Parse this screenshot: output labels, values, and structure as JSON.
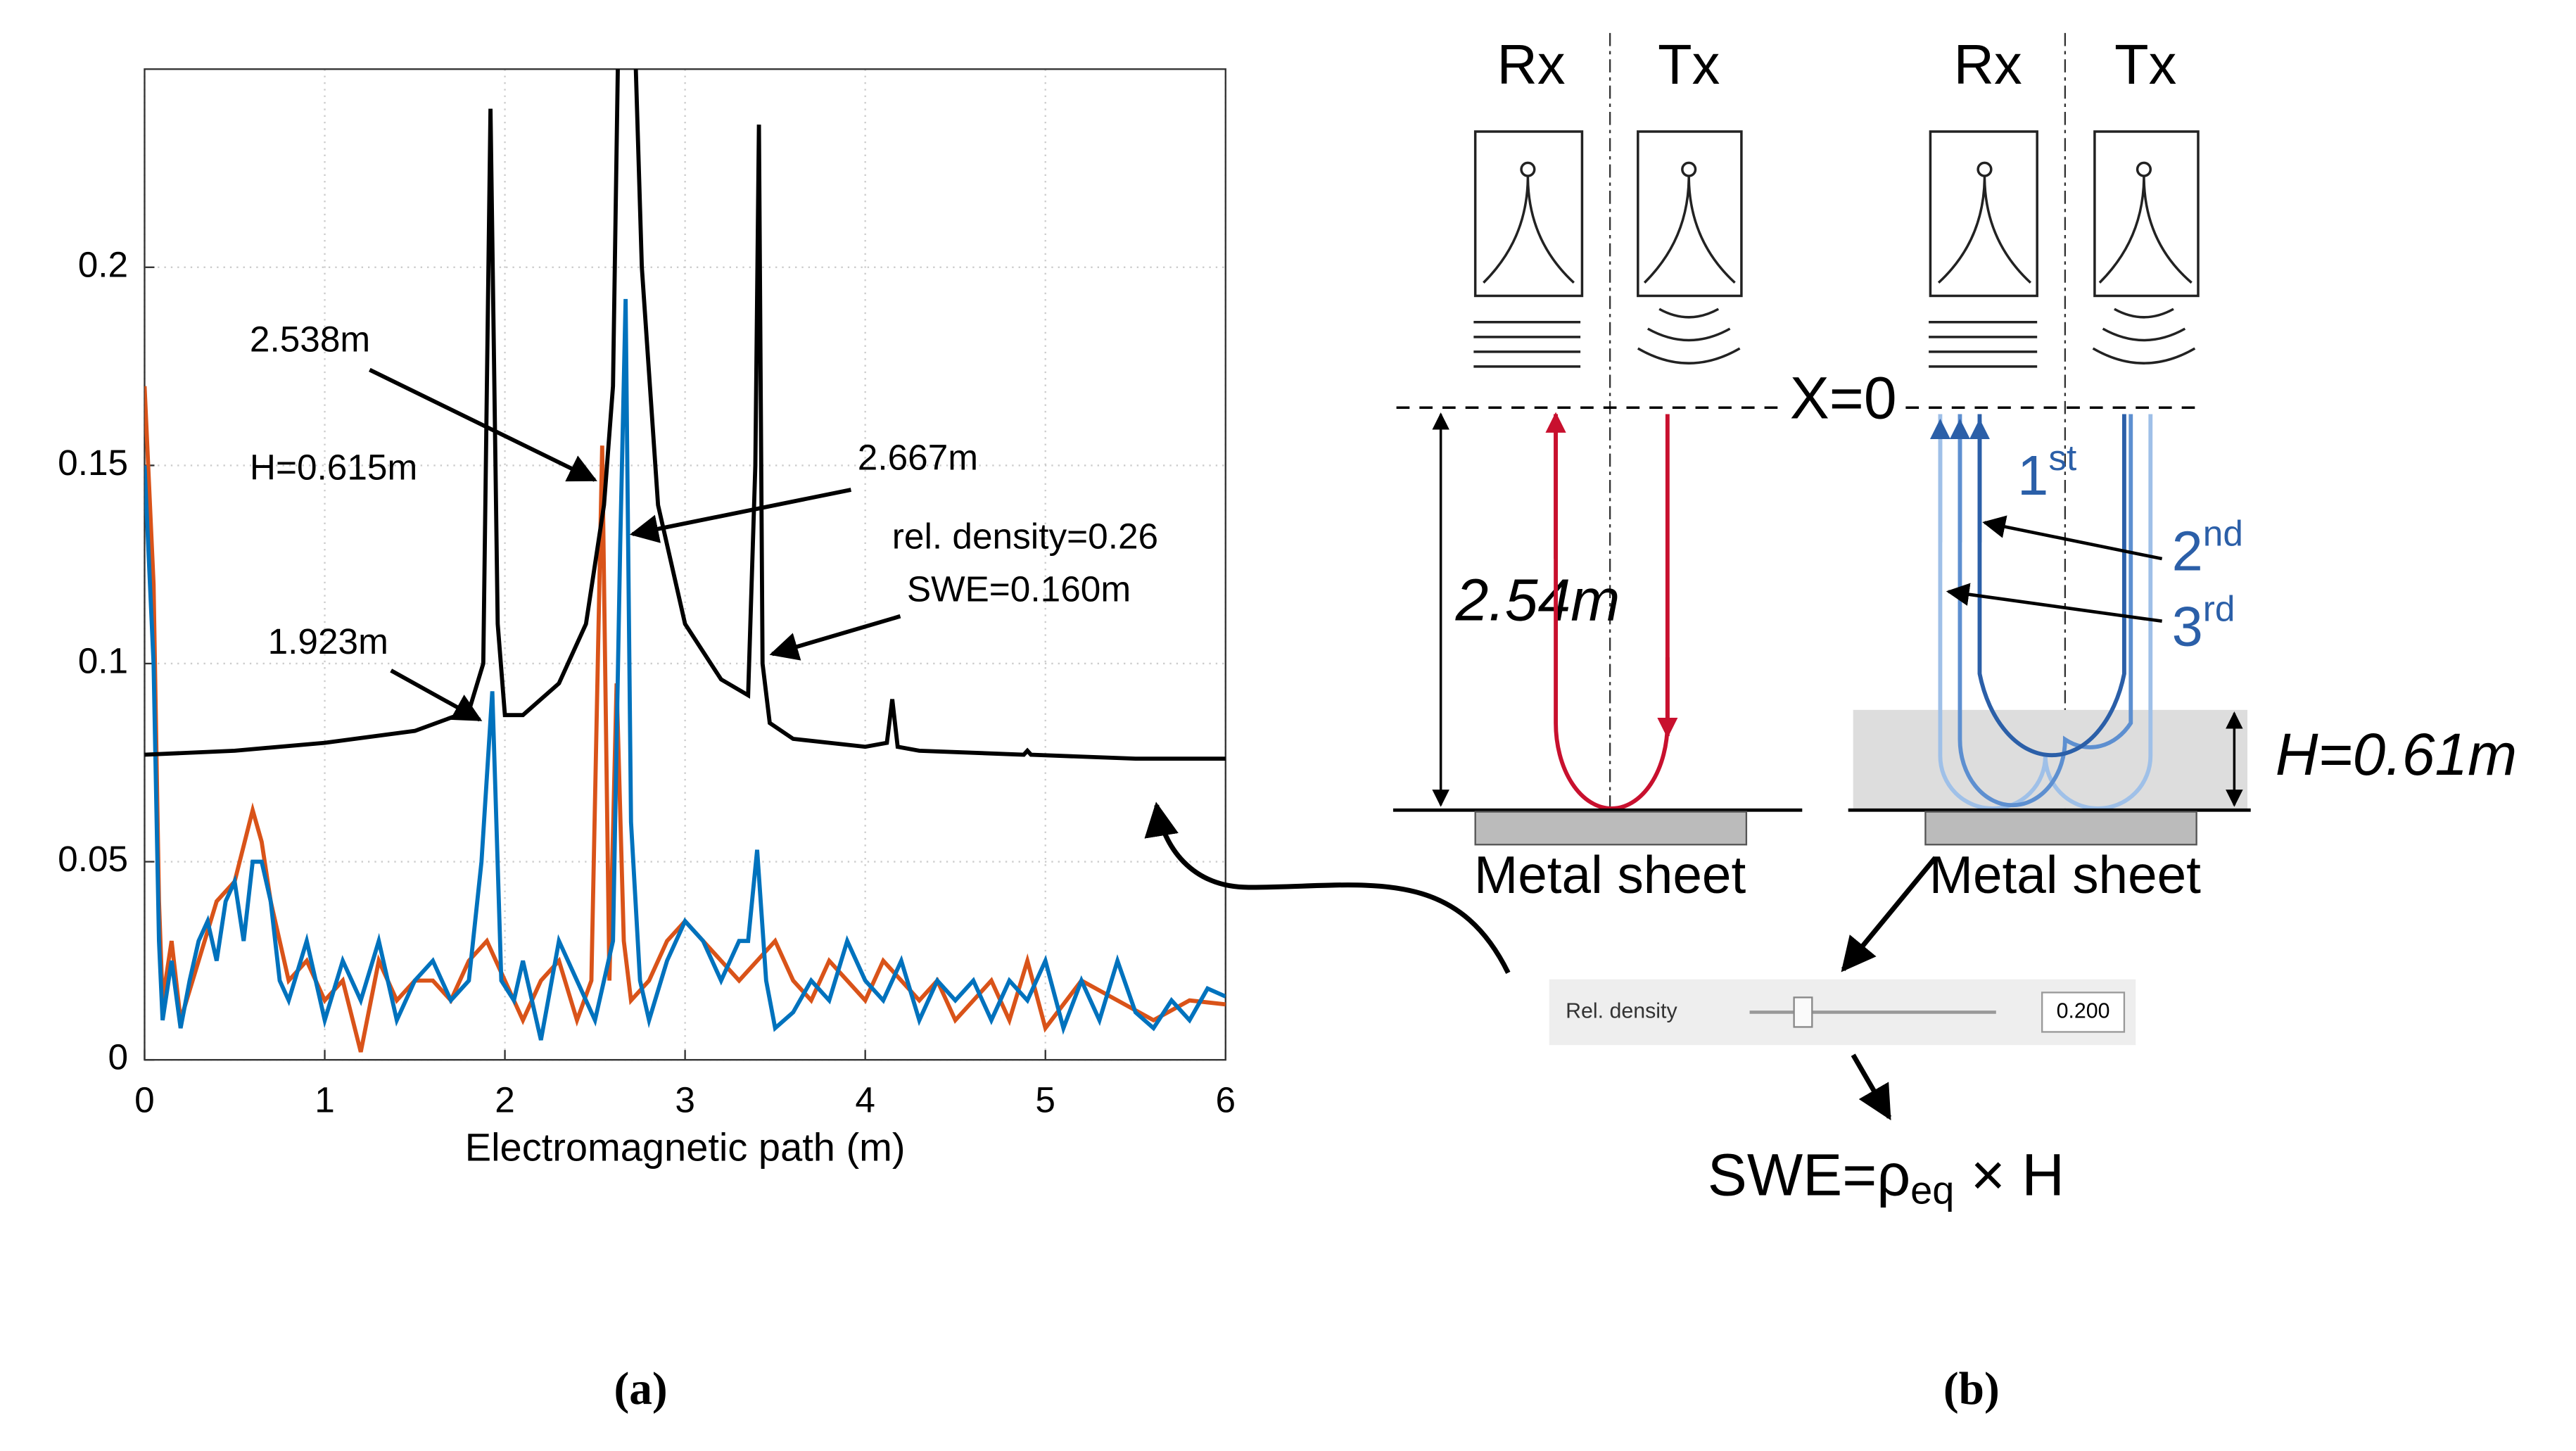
{
  "chart_data": {
    "type": "line",
    "x_label": "Electromagnetic path (m)",
    "xlim": [
      0,
      6
    ],
    "xticks": [
      0,
      1,
      2,
      3,
      4,
      5,
      6
    ],
    "ylim": [
      0,
      0.25
    ],
    "yticks": [
      0,
      0.05,
      0.1,
      0.15,
      0.2
    ],
    "grid": true,
    "series": [
      {
        "color": "#d95319",
        "x": [
          0,
          0.05,
          0.08,
          0.1,
          0.15,
          0.2,
          0.3,
          0.4,
          0.5,
          0.6,
          0.65,
          0.7,
          0.8,
          0.9,
          1.0,
          1.1,
          1.2,
          1.3,
          1.4,
          1.5,
          1.6,
          1.7,
          1.8,
          1.9,
          2.0,
          2.1,
          2.2,
          2.3,
          2.4,
          2.48,
          2.54,
          2.58,
          2.62,
          2.66,
          2.7,
          2.8,
          2.9,
          3.0,
          3.1,
          3.2,
          3.3,
          3.4,
          3.5,
          3.6,
          3.7,
          3.8,
          3.9,
          4.0,
          4.1,
          4.2,
          4.3,
          4.4,
          4.5,
          4.6,
          4.7,
          4.8,
          4.9,
          5.0,
          5.2,
          5.4,
          5.6,
          5.8,
          6.0
        ],
        "values": [
          0.17,
          0.12,
          0.04,
          0.015,
          0.03,
          0.01,
          0.025,
          0.04,
          0.045,
          0.063,
          0.055,
          0.04,
          0.02,
          0.025,
          0.015,
          0.02,
          0.002,
          0.025,
          0.015,
          0.02,
          0.02,
          0.015,
          0.025,
          0.03,
          0.02,
          0.01,
          0.02,
          0.025,
          0.01,
          0.02,
          0.155,
          0.02,
          0.095,
          0.03,
          0.015,
          0.02,
          0.03,
          0.035,
          0.03,
          0.025,
          0.02,
          0.025,
          0.03,
          0.02,
          0.015,
          0.025,
          0.02,
          0.015,
          0.025,
          0.02,
          0.015,
          0.02,
          0.01,
          0.015,
          0.02,
          0.01,
          0.025,
          0.008,
          0.02,
          0.015,
          0.01,
          0.015,
          0.014
        ]
      },
      {
        "color": "#0072bd",
        "x": [
          0,
          0.05,
          0.08,
          0.1,
          0.15,
          0.2,
          0.25,
          0.3,
          0.35,
          0.4,
          0.45,
          0.5,
          0.55,
          0.6,
          0.65,
          0.7,
          0.75,
          0.8,
          0.9,
          1.0,
          1.1,
          1.2,
          1.3,
          1.4,
          1.5,
          1.6,
          1.7,
          1.8,
          1.87,
          1.93,
          1.98,
          2.05,
          2.1,
          2.2,
          2.3,
          2.4,
          2.5,
          2.6,
          2.64,
          2.67,
          2.7,
          2.75,
          2.8,
          2.9,
          3.0,
          3.1,
          3.2,
          3.3,
          3.35,
          3.4,
          3.45,
          3.5,
          3.6,
          3.7,
          3.8,
          3.9,
          4.0,
          4.1,
          4.2,
          4.3,
          4.4,
          4.5,
          4.6,
          4.7,
          4.8,
          4.9,
          5.0,
          5.1,
          5.2,
          5.3,
          5.4,
          5.5,
          5.6,
          5.7,
          5.8,
          5.9,
          6.0
        ],
        "values": [
          0.15,
          0.1,
          0.03,
          0.01,
          0.025,
          0.008,
          0.02,
          0.03,
          0.035,
          0.025,
          0.04,
          0.045,
          0.03,
          0.05,
          0.05,
          0.04,
          0.02,
          0.015,
          0.03,
          0.01,
          0.025,
          0.015,
          0.03,
          0.01,
          0.02,
          0.025,
          0.015,
          0.02,
          0.05,
          0.093,
          0.02,
          0.015,
          0.025,
          0.005,
          0.03,
          0.02,
          0.01,
          0.03,
          0.13,
          0.192,
          0.06,
          0.02,
          0.01,
          0.025,
          0.035,
          0.03,
          0.02,
          0.03,
          0.03,
          0.053,
          0.02,
          0.008,
          0.012,
          0.02,
          0.015,
          0.03,
          0.02,
          0.015,
          0.025,
          0.01,
          0.02,
          0.015,
          0.02,
          0.01,
          0.02,
          0.015,
          0.025,
          0.008,
          0.02,
          0.01,
          0.025,
          0.012,
          0.008,
          0.015,
          0.01,
          0.018,
          0.016
        ]
      },
      {
        "color": "#000000",
        "x": [
          0,
          0.5,
          1,
          1.5,
          1.8,
          1.88,
          1.92,
          1.96,
          2.0,
          2.1,
          2.3,
          2.45,
          2.55,
          2.6,
          2.63,
          2.66,
          2.69,
          2.72,
          2.76,
          2.85,
          3.0,
          3.2,
          3.35,
          3.39,
          3.41,
          3.43,
          3.47,
          3.6,
          4.0,
          4.12,
          4.15,
          4.18,
          4.3,
          4.88,
          4.9,
          4.92,
          5.5,
          6
        ],
        "values": [
          0.077,
          0.078,
          0.08,
          0.083,
          0.088,
          0.1,
          0.24,
          0.11,
          0.087,
          0.087,
          0.095,
          0.11,
          0.14,
          0.17,
          0.26,
          0.26,
          0.26,
          0.26,
          0.2,
          0.14,
          0.11,
          0.096,
          0.092,
          0.15,
          0.236,
          0.1,
          0.085,
          0.081,
          0.079,
          0.08,
          0.091,
          0.079,
          0.078,
          0.077,
          0.078,
          0.077,
          0.076,
          0.076
        ]
      }
    ],
    "annotations": [
      {
        "text": "2.538m"
      },
      {
        "text": "H=0.615m"
      },
      {
        "text": "2.667m"
      },
      {
        "text": "rel. density=0.26"
      },
      {
        "text": "SWE=0.160m"
      },
      {
        "text": "1.923m"
      }
    ],
    "caption": "(a)"
  },
  "diagram": {
    "left": {
      "rx": "Rx",
      "tx": "Tx",
      "distance": "2.54m",
      "sheet": "Metal sheet"
    },
    "right": {
      "rx": "Rx",
      "tx": "Tx",
      "origin": "X=0",
      "height": "H=0.61m",
      "sheet": "Metal sheet",
      "orders": [
        {
          "number": "1",
          "suffix": "st"
        },
        {
          "number": "2",
          "suffix": "nd"
        },
        {
          "number": "3",
          "suffix": "rd"
        }
      ]
    },
    "slider": {
      "label": "Rel. density",
      "value": "0.200"
    },
    "formula": {
      "prefix": "SWE=ρ",
      "subscript": "eq",
      "suffix": " × H"
    },
    "caption": "(b)"
  }
}
